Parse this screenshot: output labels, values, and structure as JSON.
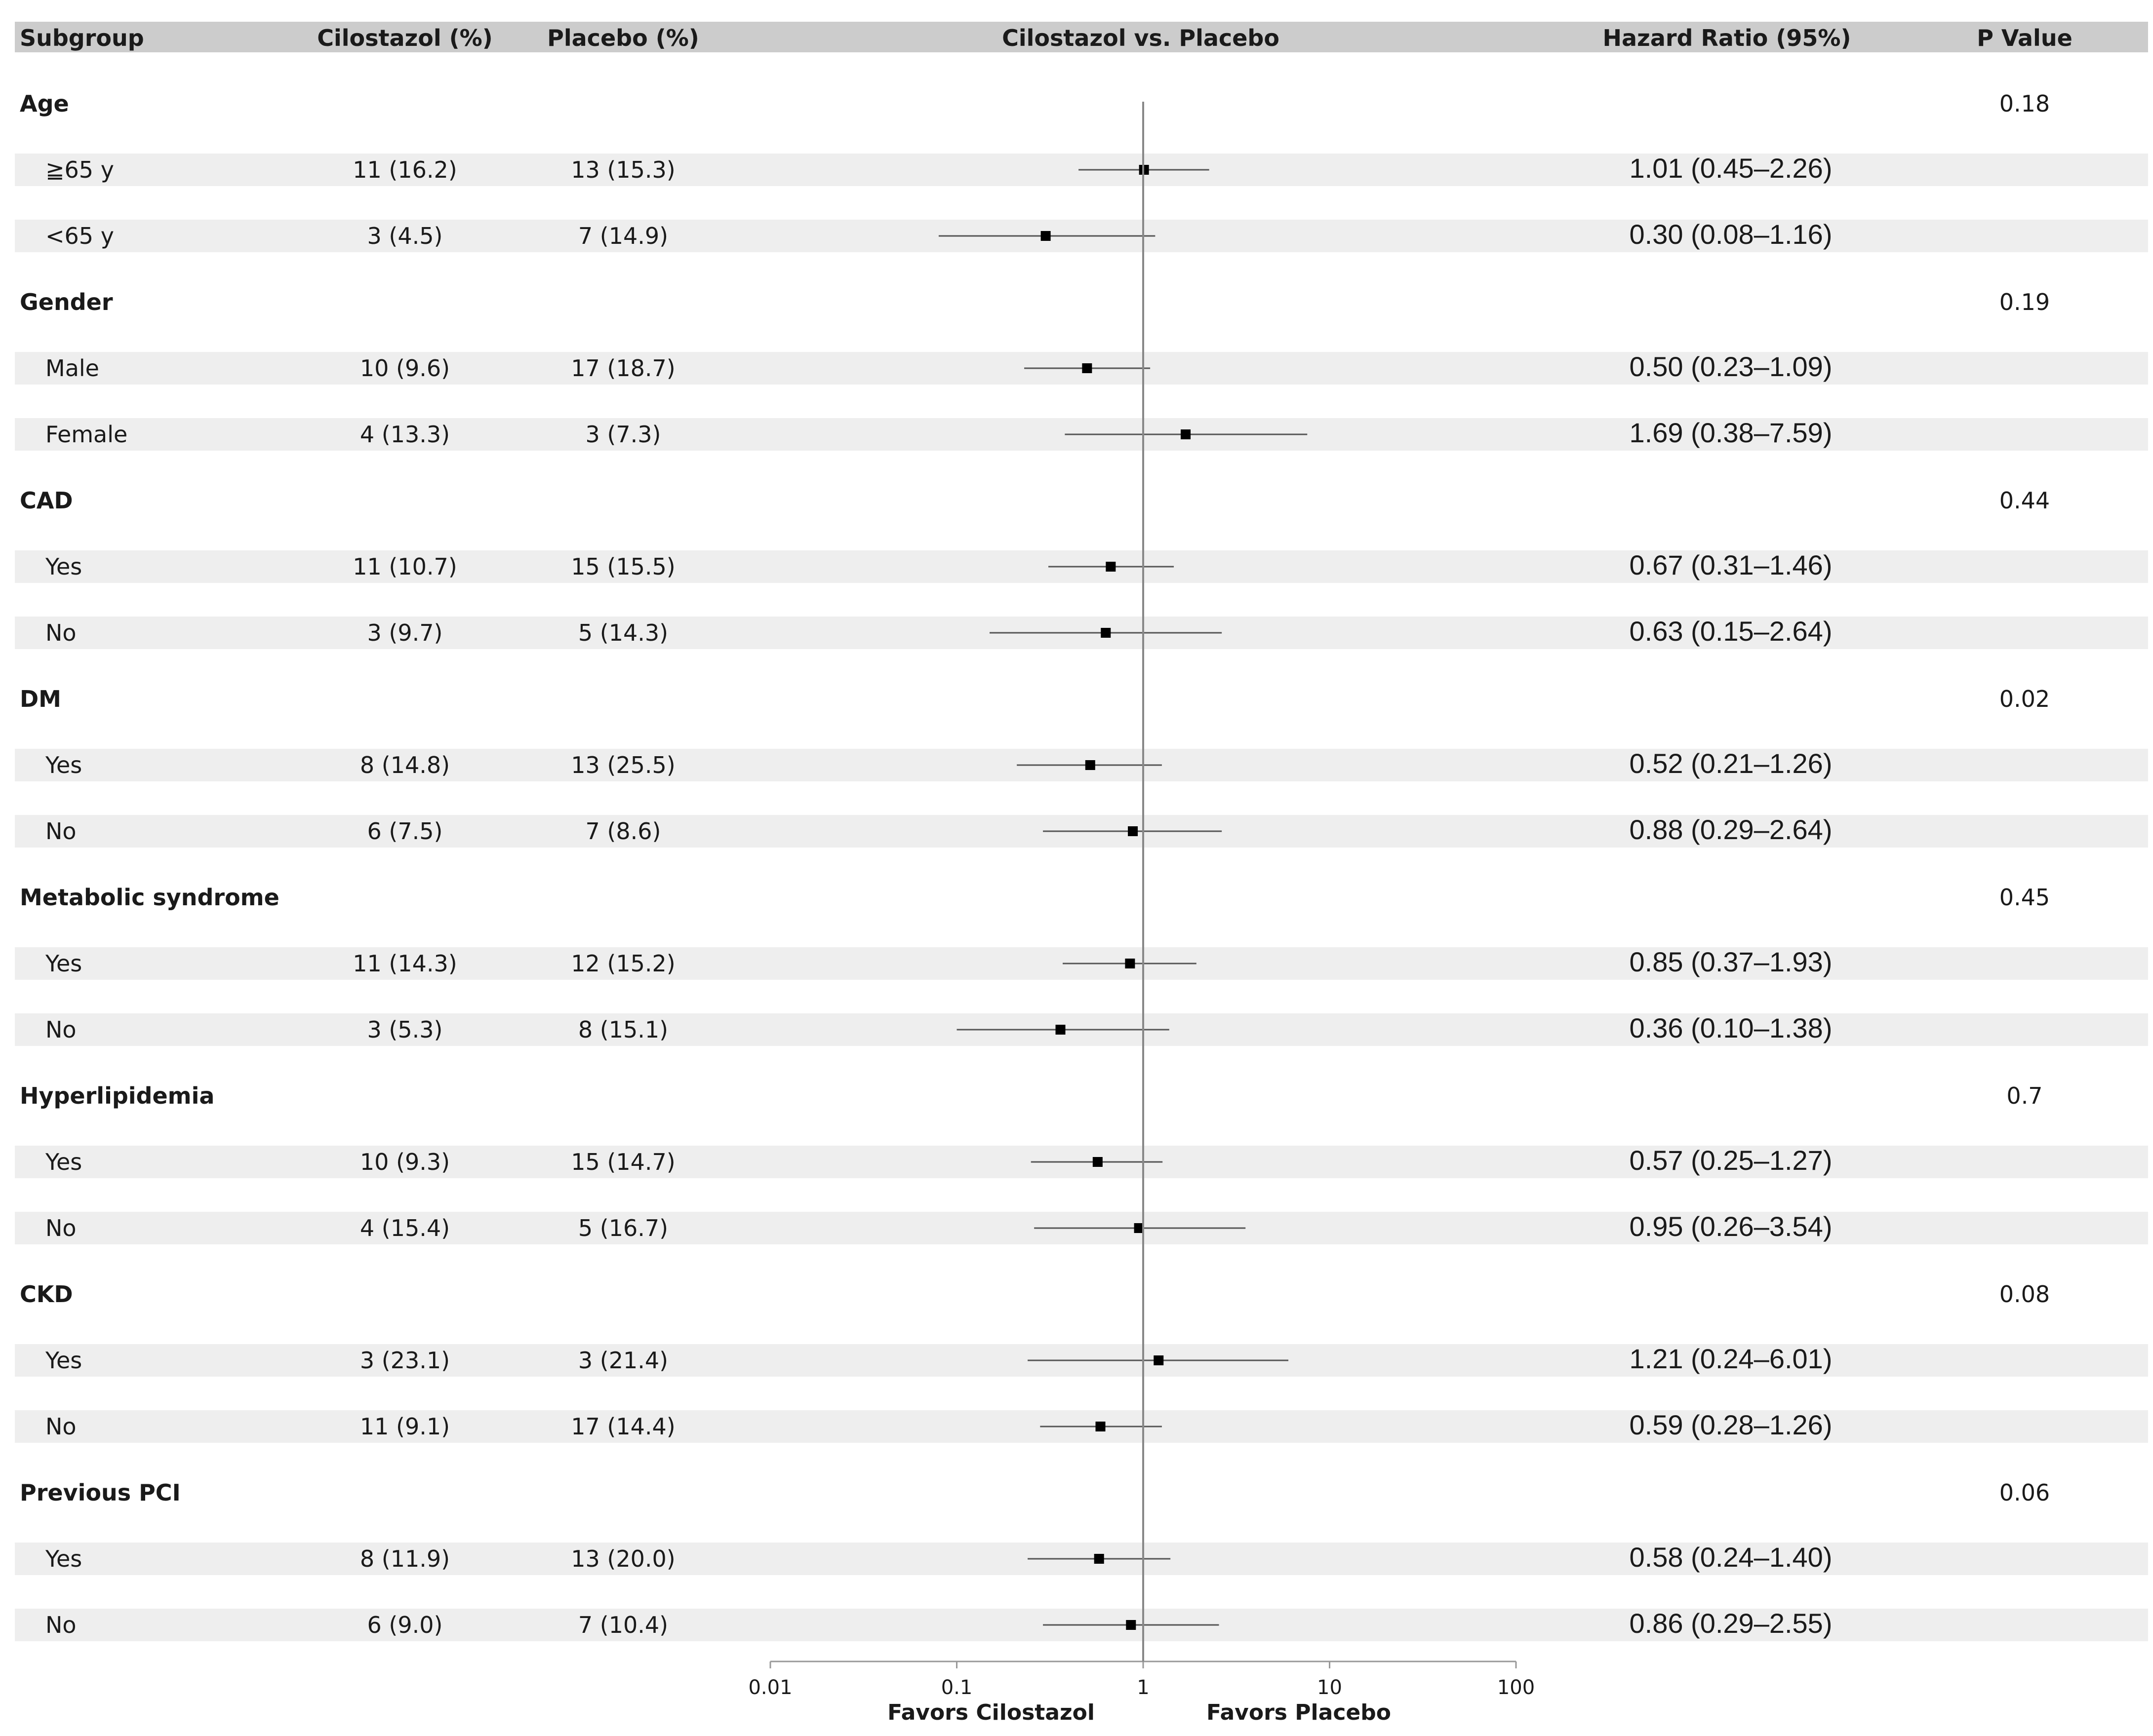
{
  "header": {
    "subgroup": "Subgroup",
    "cilostazol": "Cilostazol (%)",
    "placebo": "Placebo (%)",
    "comparison": "Cilostazol vs. Placebo",
    "hazard_ratio": "Hazard Ratio (95%)",
    "p_value": "P Value"
  },
  "colors": {
    "header_band": "#cccccc",
    "row_band": "#eeeeee",
    "marker": "#000000",
    "ci_line": "#555555",
    "reference_line": "#888888"
  },
  "chart_data": {
    "type": "forest",
    "x_scale": "log",
    "xlim": [
      0.01,
      100
    ],
    "reference_value": 1,
    "x_ticks": [
      "0.01",
      "0.1",
      "1",
      "10",
      "100"
    ],
    "favors_left": "Favors Cilostazol",
    "favors_right": "Favors Placebo",
    "groups": [
      {
        "name": "Age",
        "p": "0.18",
        "rows": [
          {
            "label": "≧65 y",
            "cilostazol": "11 (16.2)",
            "placebo": "13 (15.3)",
            "hr_text": "1.01 (0.45–2.26)",
            "hr": 1.01,
            "lo": 0.45,
            "hi": 2.26
          },
          {
            "label": "<65 y",
            "cilostazol": "3 (4.5)",
            "placebo": "7 (14.9)",
            "hr_text": "0.30 (0.08–1.16)",
            "hr": 0.3,
            "lo": 0.08,
            "hi": 1.16
          }
        ]
      },
      {
        "name": "Gender",
        "p": "0.19",
        "rows": [
          {
            "label": "Male",
            "cilostazol": "10 (9.6)",
            "placebo": "17 (18.7)",
            "hr_text": "0.50 (0.23–1.09)",
            "hr": 0.5,
            "lo": 0.23,
            "hi": 1.09
          },
          {
            "label": "Female",
            "cilostazol": "4 (13.3)",
            "placebo": "3 (7.3)",
            "hr_text": "1.69 (0.38–7.59)",
            "hr": 1.69,
            "lo": 0.38,
            "hi": 7.59
          }
        ]
      },
      {
        "name": "CAD",
        "p": "0.44",
        "rows": [
          {
            "label": "Yes",
            "cilostazol": "11 (10.7)",
            "placebo": "15 (15.5)",
            "hr_text": "0.67 (0.31–1.46)",
            "hr": 0.67,
            "lo": 0.31,
            "hi": 1.46
          },
          {
            "label": "No",
            "cilostazol": "3 (9.7)",
            "placebo": "5 (14.3)",
            "hr_text": "0.63 (0.15–2.64)",
            "hr": 0.63,
            "lo": 0.15,
            "hi": 2.64
          }
        ]
      },
      {
        "name": "DM",
        "p": "0.02",
        "rows": [
          {
            "label": "Yes",
            "cilostazol": "8 (14.8)",
            "placebo": "13 (25.5)",
            "hr_text": "0.52 (0.21–1.26)",
            "hr": 0.52,
            "lo": 0.21,
            "hi": 1.26
          },
          {
            "label": "No",
            "cilostazol": "6 (7.5)",
            "placebo": "7 (8.6)",
            "hr_text": "0.88 (0.29–2.64)",
            "hr": 0.88,
            "lo": 0.29,
            "hi": 2.64
          }
        ]
      },
      {
        "name": "Metabolic syndrome",
        "p": "0.45",
        "rows": [
          {
            "label": "Yes",
            "cilostazol": "11 (14.3)",
            "placebo": "12 (15.2)",
            "hr_text": "0.85 (0.37–1.93)",
            "hr": 0.85,
            "lo": 0.37,
            "hi": 1.93
          },
          {
            "label": "No",
            "cilostazol": "3 (5.3)",
            "placebo": "8 (15.1)",
            "hr_text": "0.36 (0.10–1.38)",
            "hr": 0.36,
            "lo": 0.1,
            "hi": 1.38
          }
        ]
      },
      {
        "name": "Hyperlipidemia",
        "p": "0.7",
        "rows": [
          {
            "label": "Yes",
            "cilostazol": "10 (9.3)",
            "placebo": "15 (14.7)",
            "hr_text": "0.57 (0.25–1.27)",
            "hr": 0.57,
            "lo": 0.25,
            "hi": 1.27
          },
          {
            "label": "No",
            "cilostazol": "4 (15.4)",
            "placebo": "5 (16.7)",
            "hr_text": "0.95 (0.26–3.54)",
            "hr": 0.95,
            "lo": 0.26,
            "hi": 3.54
          }
        ]
      },
      {
        "name": "CKD",
        "p": "0.08",
        "rows": [
          {
            "label": "Yes",
            "cilostazol": "3 (23.1)",
            "placebo": "3 (21.4)",
            "hr_text": "1.21 (0.24–6.01)",
            "hr": 1.21,
            "lo": 0.24,
            "hi": 6.01
          },
          {
            "label": "No",
            "cilostazol": "11 (9.1)",
            "placebo": "17 (14.4)",
            "hr_text": "0.59 (0.28–1.26)",
            "hr": 0.59,
            "lo": 0.28,
            "hi": 1.26
          }
        ]
      },
      {
        "name": "Previous PCI",
        "p": "0.06",
        "rows": [
          {
            "label": "Yes",
            "cilostazol": "8 (11.9)",
            "placebo": "13 (20.0)",
            "hr_text": "0.58 (0.24–1.40)",
            "hr": 0.58,
            "lo": 0.24,
            "hi": 1.4
          },
          {
            "label": "No",
            "cilostazol": "6 (9.0)",
            "placebo": "7 (10.4)",
            "hr_text": "0.86 (0.29–2.55)",
            "hr": 0.86,
            "lo": 0.29,
            "hi": 2.55
          }
        ]
      }
    ]
  }
}
